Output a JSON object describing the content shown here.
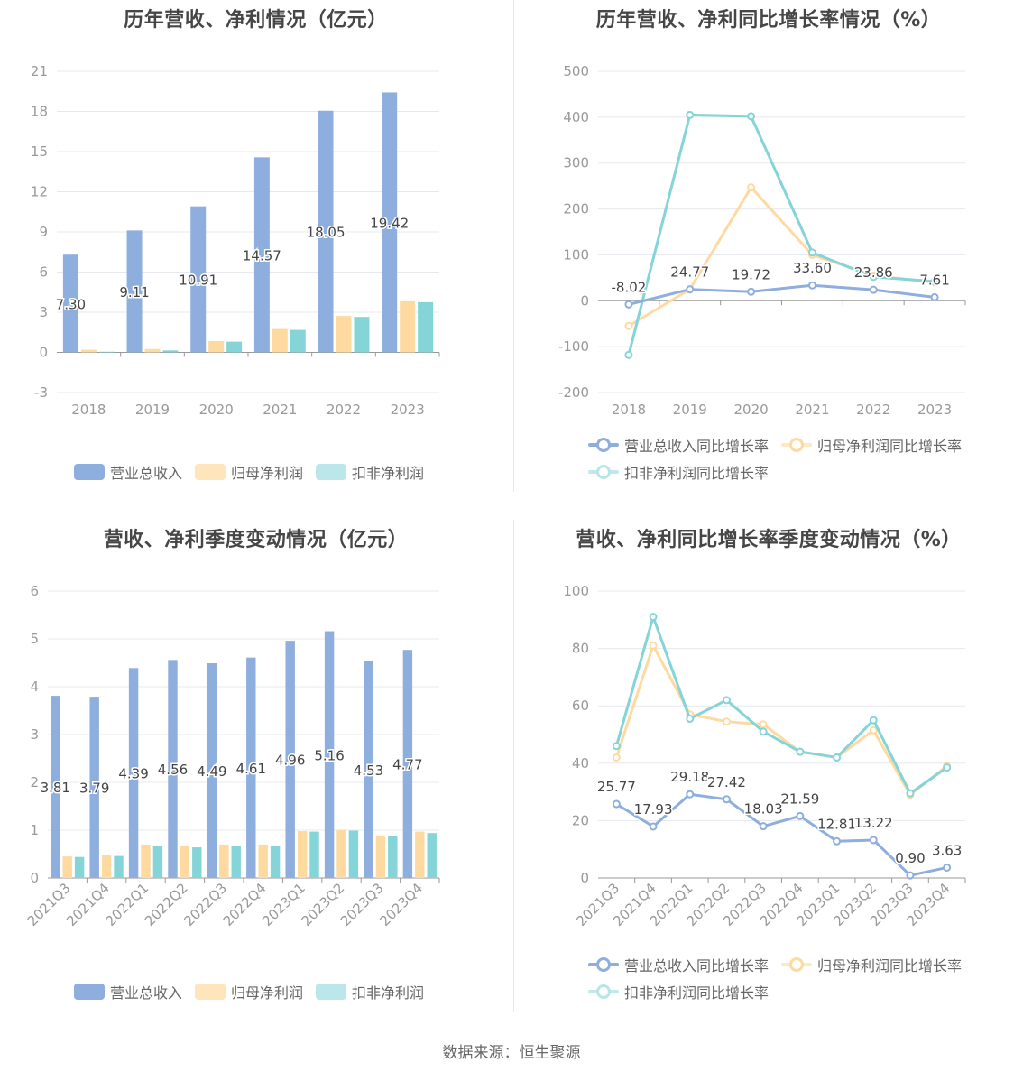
{
  "colors": {
    "revenue": "#8eaedd",
    "net_profit": "#fedaa0",
    "deducted_profit": "#84d4d8",
    "axis_text": "#999999",
    "grid": "#e6e8ee",
    "label_text": "#444444"
  },
  "source_text": "数据来源：恒生聚源",
  "chart_data": [
    {
      "type": "bar",
      "title": "历年营收、净利情况（亿元）",
      "categories": [
        "2018",
        "2019",
        "2020",
        "2021",
        "2022",
        "2023"
      ],
      "ylim": [
        -3,
        21
      ],
      "yticks": [
        -3,
        0,
        3,
        6,
        9,
        12,
        15,
        18,
        21
      ],
      "series": [
        {
          "name": "营业总收入",
          "values": [
            7.3,
            9.11,
            10.91,
            14.57,
            18.05,
            19.42
          ],
          "labels": [
            "7.30",
            "9.11",
            "10.91",
            "14.57",
            "18.05",
            "19.42"
          ]
        },
        {
          "name": "归母净利润",
          "values": [
            0.2,
            0.25,
            0.85,
            1.75,
            2.72,
            3.82
          ]
        },
        {
          "name": "扣非净利润",
          "values": [
            0.05,
            0.15,
            0.8,
            1.68,
            2.65,
            3.75
          ]
        }
      ],
      "legend": [
        "营业总收入",
        "归母净利润",
        "扣非净利润"
      ],
      "grid": true,
      "legend_position": "bottom"
    },
    {
      "type": "line",
      "title": "历年营收、净利同比增长率情况（%）",
      "categories": [
        "2018",
        "2019",
        "2020",
        "2021",
        "2022",
        "2023"
      ],
      "ylim": [
        -200,
        500
      ],
      "yticks": [
        -200,
        -100,
        0,
        100,
        200,
        300,
        400,
        500
      ],
      "series": [
        {
          "name": "营业总收入同比增长率",
          "values": [
            -8.02,
            24.77,
            19.72,
            33.6,
            23.86,
            7.61
          ],
          "labels": [
            "-8.02",
            "24.77",
            "19.72",
            "33.60",
            "23.86",
            "7.61"
          ]
        },
        {
          "name": "归母净利润同比增长率",
          "values": [
            -55,
            25,
            247,
            100,
            55,
            40
          ]
        },
        {
          "name": "扣非净利润同比增长率",
          "values": [
            -118,
            405,
            402,
            105,
            52,
            42
          ]
        }
      ],
      "legend": [
        "营业总收入同比增长率",
        "归母净利润同比增长率",
        "扣非净利润同比增长率"
      ],
      "grid": true,
      "legend_position": "bottom"
    },
    {
      "type": "bar",
      "title": "营收、净利季度变动情况（亿元）",
      "categories": [
        "2021Q3",
        "2021Q4",
        "2022Q1",
        "2022Q2",
        "2022Q3",
        "2022Q4",
        "2023Q1",
        "2023Q2",
        "2023Q3",
        "2023Q4"
      ],
      "ylim": [
        0,
        6
      ],
      "yticks": [
        0,
        1,
        2,
        3,
        4,
        5,
        6
      ],
      "series": [
        {
          "name": "营业总收入",
          "values": [
            3.81,
            3.79,
            4.39,
            4.56,
            4.49,
            4.61,
            4.96,
            5.16,
            4.53,
            4.77
          ],
          "labels": [
            "3.81",
            "3.79",
            "4.39",
            "4.56",
            "4.49",
            "4.61",
            "4.96",
            "5.16",
            "4.53",
            "4.77"
          ]
        },
        {
          "name": "归母净利润",
          "values": [
            0.45,
            0.48,
            0.7,
            0.66,
            0.7,
            0.7,
            0.98,
            1.01,
            0.89,
            0.97
          ]
        },
        {
          "name": "扣非净利润",
          "values": [
            0.44,
            0.46,
            0.68,
            0.64,
            0.68,
            0.68,
            0.97,
            0.99,
            0.87,
            0.94
          ]
        }
      ],
      "legend": [
        "营业总收入",
        "归母净利润",
        "扣非净利润"
      ],
      "grid": true,
      "legend_position": "bottom"
    },
    {
      "type": "line",
      "title": "营收、净利同比增长率季度变动情况（%）",
      "categories": [
        "2021Q3",
        "2021Q4",
        "2022Q1",
        "2022Q2",
        "2022Q3",
        "2022Q4",
        "2023Q1",
        "2023Q2",
        "2023Q3",
        "2023Q4"
      ],
      "ylim": [
        0,
        100
      ],
      "yticks": [
        0,
        20,
        40,
        60,
        80,
        100
      ],
      "series": [
        {
          "name": "营业总收入同比增长率",
          "values": [
            25.77,
            17.93,
            29.18,
            27.42,
            18.03,
            21.59,
            12.81,
            13.22,
            0.9,
            3.63
          ],
          "labels": [
            "25.77",
            "17.93",
            "29.18",
            "27.42",
            "18.03",
            "21.59",
            "12.81",
            "13.22",
            "0.90",
            "3.63"
          ]
        },
        {
          "name": "归母净利润同比增长率",
          "values": [
            42,
            81,
            57,
            54.5,
            53.5,
            44,
            42,
            51.5,
            29,
            39
          ]
        },
        {
          "name": "扣非净利润同比增长率",
          "values": [
            46,
            91,
            55.5,
            62,
            51,
            44,
            42,
            55,
            29.5,
            38.5
          ]
        }
      ],
      "legend": [
        "营业总收入同比增长率",
        "归母净利润同比增长率",
        "扣非净利润同比增长率"
      ],
      "grid": true,
      "legend_position": "bottom"
    }
  ]
}
